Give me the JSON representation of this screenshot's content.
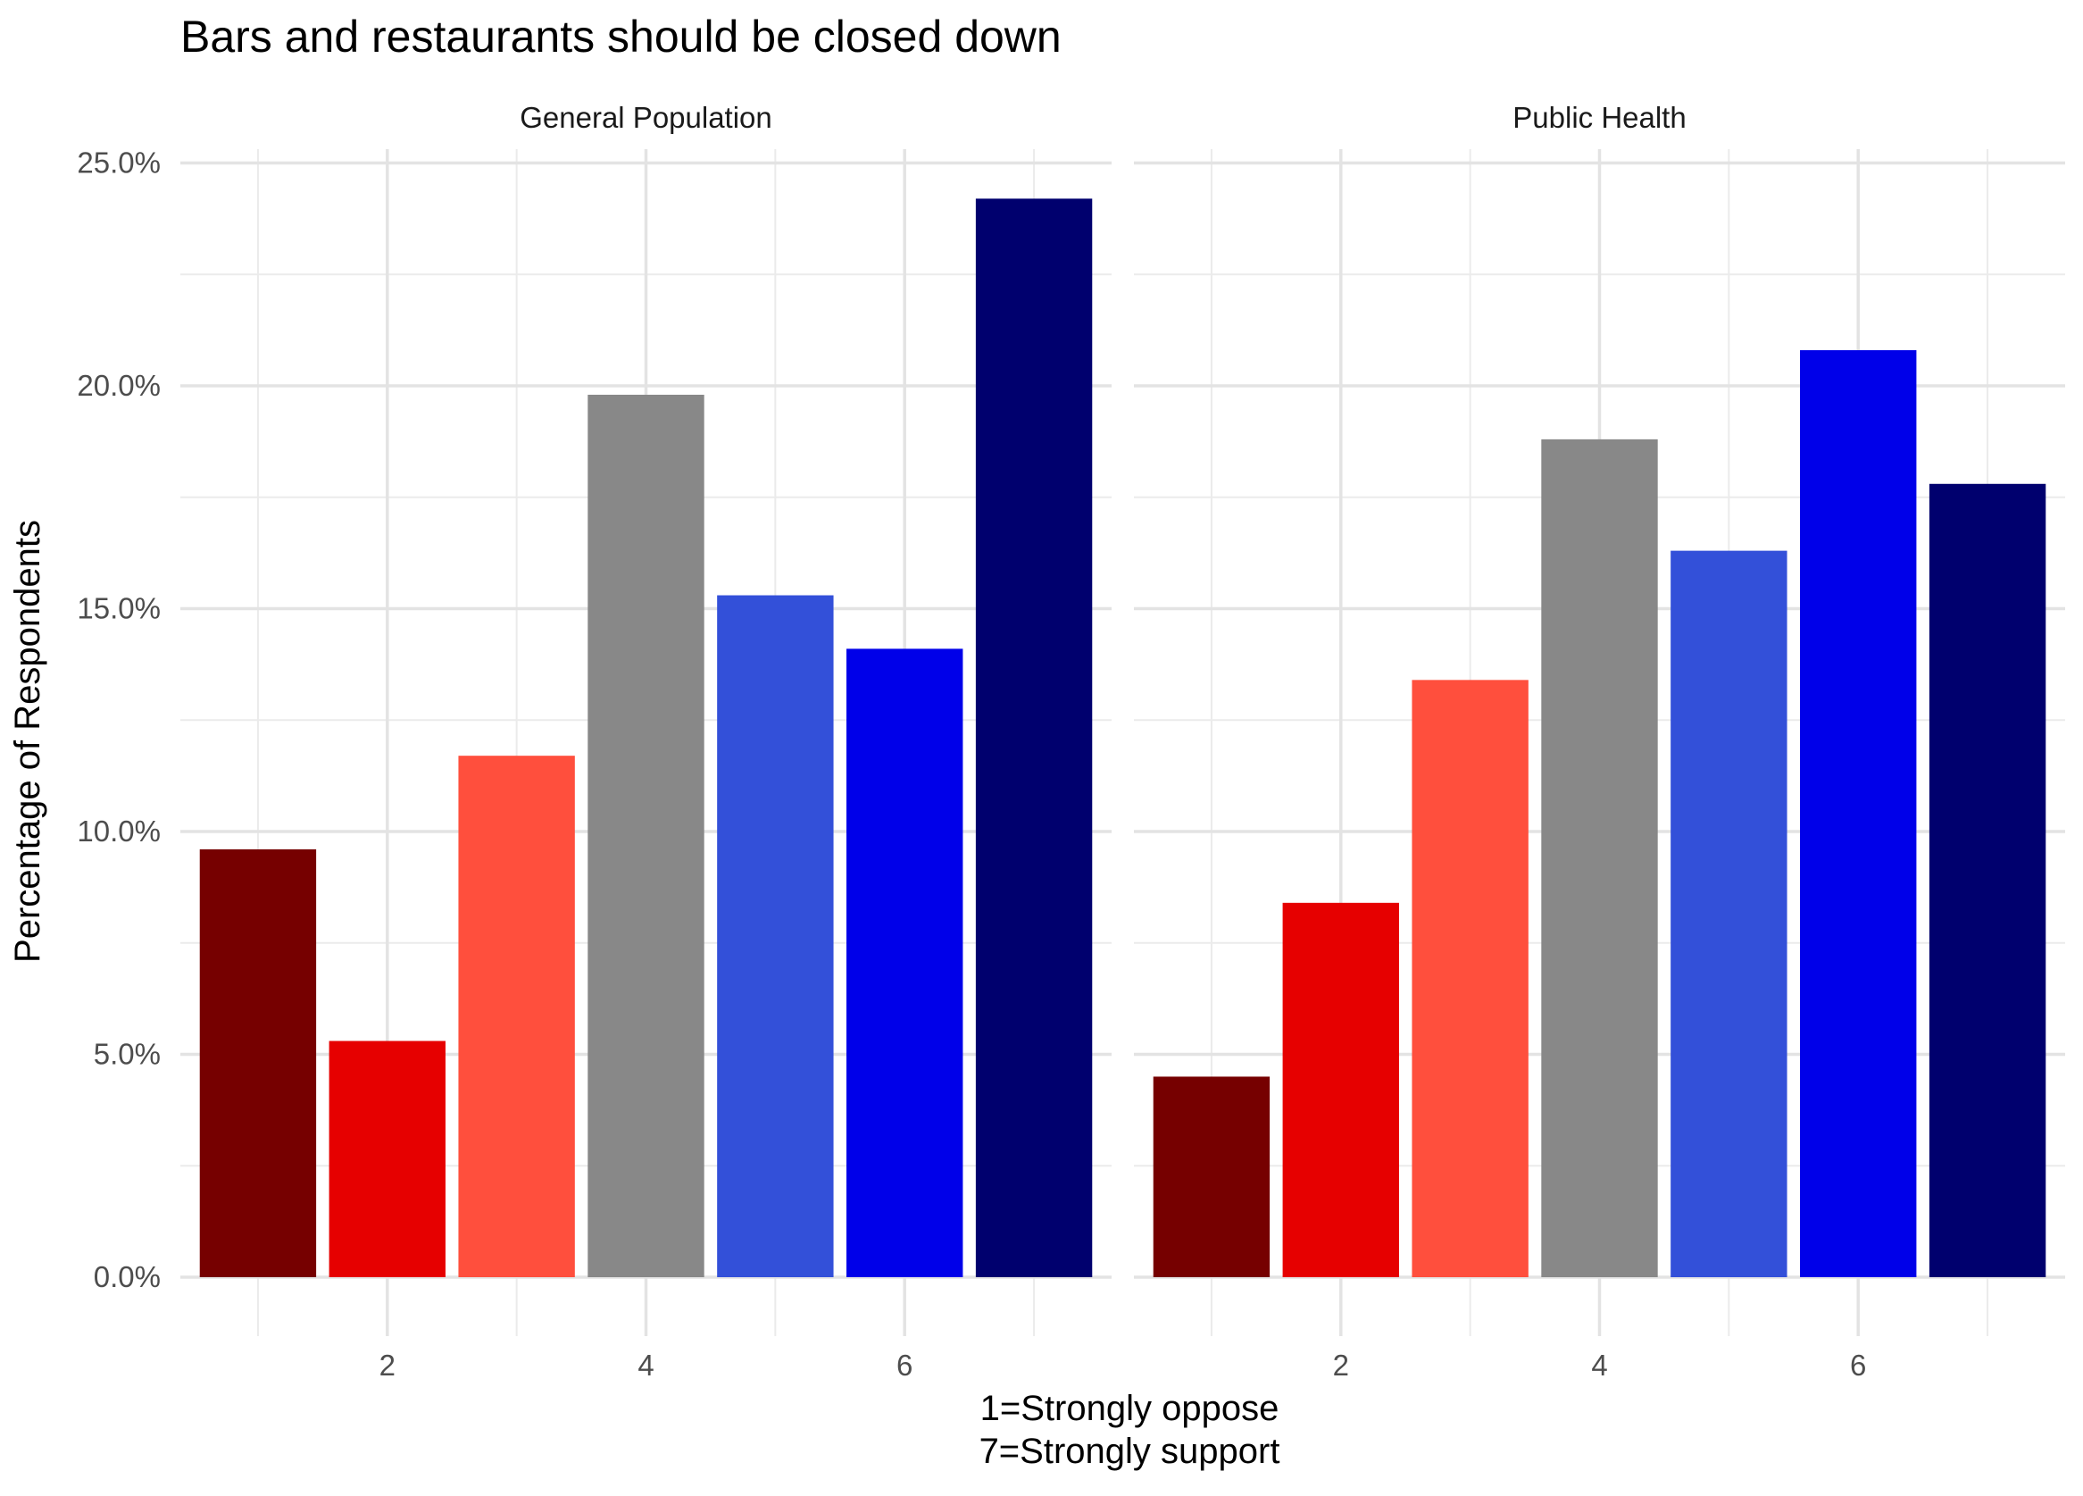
{
  "chart_data": {
    "type": "bar",
    "title": "Bars and restaurants should be closed down",
    "ylabel": "Percentage of Respondents",
    "xlabel_lines": [
      "1=Strongly oppose",
      "7=Strongly support"
    ],
    "ylim": [
      0,
      25
    ],
    "y_ticks": [
      0,
      5,
      10,
      15,
      20,
      25
    ],
    "y_tick_labels": [
      "0.0%",
      "5.0%",
      "10.0%",
      "15.0%",
      "20.0%",
      "25.0%"
    ],
    "xlim": [
      0.4,
      7.6
    ],
    "x_ticks": [
      2,
      4,
      6
    ],
    "x_tick_labels": [
      "2",
      "4",
      "6"
    ],
    "categories": [
      1,
      2,
      3,
      4,
      5,
      6,
      7
    ],
    "bar_colors": [
      "#760000",
      "#E60000",
      "#FF4F3D",
      "#888888",
      "#3350D9",
      "#0000E9",
      "#00006E"
    ],
    "grid": true,
    "legend": "none",
    "panels": [
      {
        "name": "General Population",
        "values": [
          9.6,
          5.3,
          11.7,
          19.8,
          15.3,
          14.1,
          24.2
        ]
      },
      {
        "name": "Public Health",
        "values": [
          4.5,
          8.4,
          13.4,
          18.8,
          16.3,
          20.8,
          17.8
        ]
      }
    ]
  }
}
